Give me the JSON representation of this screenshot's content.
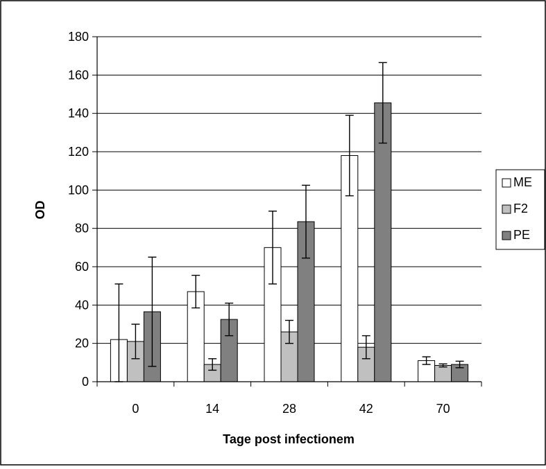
{
  "chart_data": {
    "type": "bar",
    "title": "",
    "xlabel": "Tage post infectionem",
    "ylabel": "OD",
    "ylim": [
      0,
      180
    ],
    "yticks": [
      0,
      20,
      40,
      60,
      80,
      100,
      120,
      140,
      160,
      180
    ],
    "categories": [
      "0",
      "14",
      "28",
      "42",
      "70"
    ],
    "grid": "horizontal",
    "legend_position": "right",
    "series": [
      {
        "name": "ME",
        "color": "#ffffff",
        "values": [
          22,
          47,
          70,
          118,
          11
        ],
        "errors": [
          29,
          8.5,
          19,
          21,
          2
        ]
      },
      {
        "name": "F2",
        "color": "#c0c0c0",
        "values": [
          21,
          9,
          26,
          18,
          8.5
        ],
        "errors": [
          9,
          3,
          6,
          6,
          0.8
        ]
      },
      {
        "name": "PE",
        "color": "#808080",
        "values": [
          36.5,
          32.5,
          83.5,
          145.5,
          9
        ],
        "errors": [
          28.5,
          8.5,
          19,
          21,
          1.7
        ]
      }
    ]
  }
}
